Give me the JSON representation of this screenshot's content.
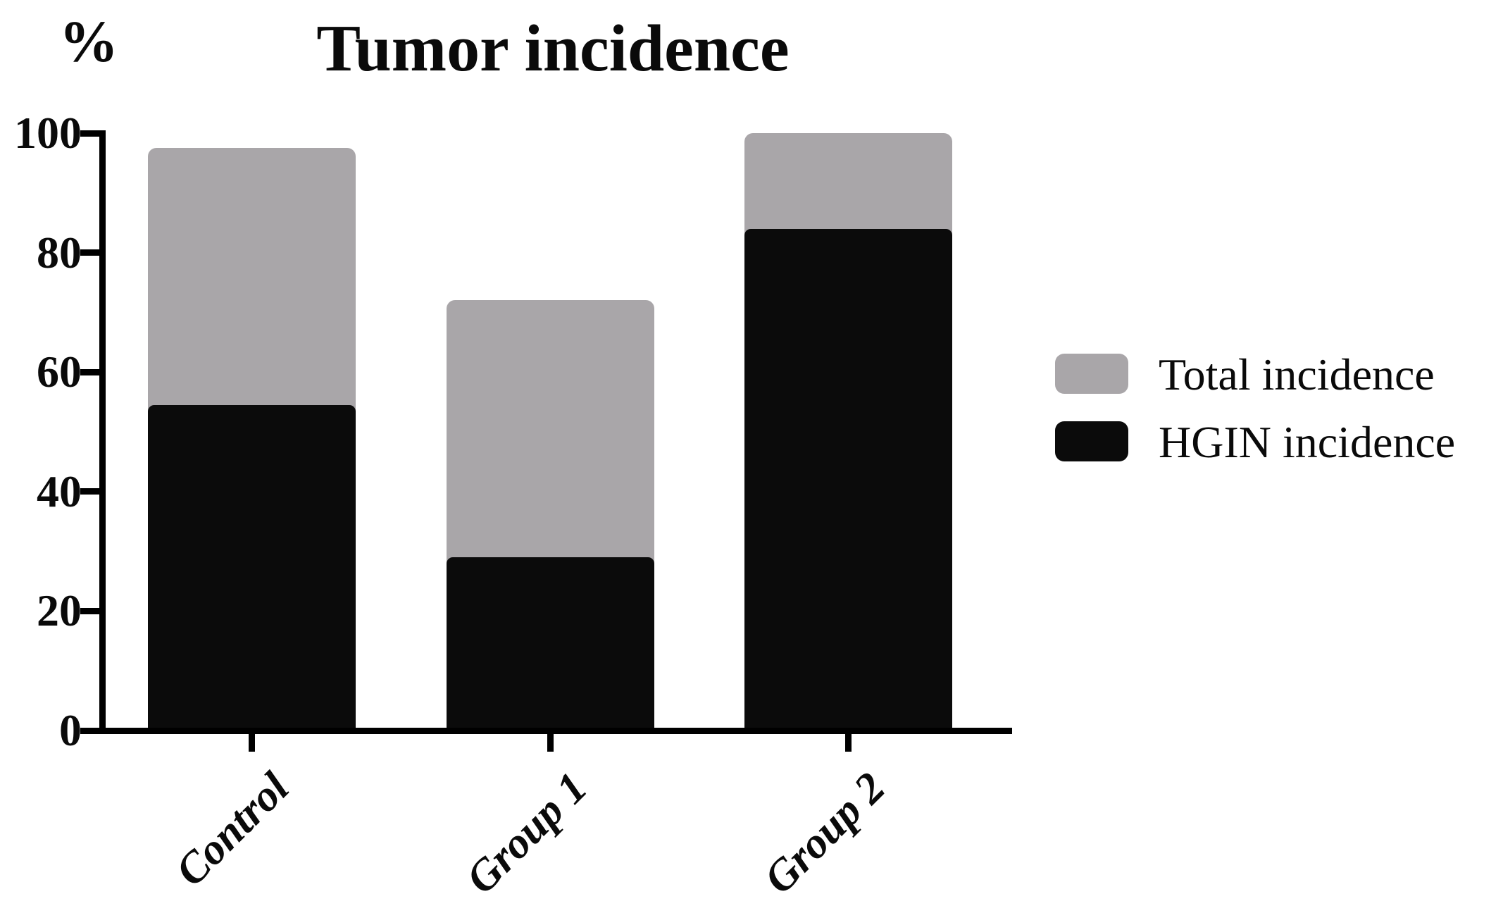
{
  "title": "Tumor incidence",
  "y_axis_unit": "%",
  "legend": {
    "items": [
      {
        "label": "Total incidence",
        "color": "#a9a6a9"
      },
      {
        "label": "HGIN incidence",
        "color": "#0b0b0b"
      }
    ]
  },
  "chart_data": {
    "type": "bar",
    "subtype": "overlaid-bars",
    "title": "Tumor incidence",
    "ylabel": "%",
    "xlabel": "",
    "categories": [
      "Control",
      "Group 1",
      "Group 2"
    ],
    "series": [
      {
        "name": "Total incidence",
        "color": "#a9a6a9",
        "values": [
          97.5,
          72,
          100
        ]
      },
      {
        "name": "HGIN incidence",
        "color": "#0b0b0b",
        "values": [
          54.5,
          29,
          84
        ]
      }
    ],
    "ylim": [
      0,
      100
    ],
    "yticks": [
      0,
      20,
      40,
      60,
      80,
      100
    ],
    "grid": false,
    "legend_position": "right",
    "bar_colors": {
      "total": "#a9a6a9",
      "hgin": "#0b0b0b"
    },
    "axis_color": "#000000"
  }
}
